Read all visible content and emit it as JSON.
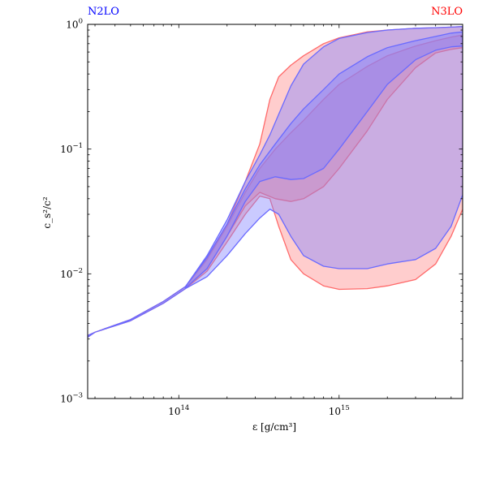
{
  "chart_data": {
    "type": "area",
    "title": "",
    "xlabel": "ε [g/cm³]",
    "ylabel": "c_s²/c²",
    "x_scale": "log",
    "y_scale": "log",
    "xlim": [
      27000000000000.0,
      5900000000000000.0
    ],
    "ylim": [
      0.001,
      1.0
    ],
    "grid": false,
    "x_ticks": [
      {
        "value": 100000000000000.0,
        "base": "10",
        "exp": "14"
      },
      {
        "value": 1000000000000000.0,
        "base": "10",
        "exp": "15"
      }
    ],
    "y_ticks": [
      {
        "value": 0.001,
        "base": "10",
        "exp": "−3"
      },
      {
        "value": 0.01,
        "base": "10",
        "exp": "−2"
      },
      {
        "value": 0.1,
        "base": "10",
        "exp": "−1"
      },
      {
        "value": 1.0,
        "base": "10",
        "exp": "0"
      }
    ],
    "corner_labels": {
      "left": {
        "text": "N2LO",
        "color": "#0000ff"
      },
      "right": {
        "text": "N3LO",
        "color": "#ff0000"
      }
    },
    "series": [
      {
        "name": "N3LO",
        "color": "#ff8888",
        "edge": "#ff6a6a",
        "outer_band": {
          "x": [
            27000000000000.0,
            30000000000000.0,
            50000000000000.0,
            80000000000000.0,
            110000000000000.0,
            150000000000000.0,
            200000000000000.0,
            260000000000000.0,
            320000000000000.0,
            370000000000000.0,
            420000000000000.0,
            500000000000000.0,
            600000000000000.0,
            800000000000000.0,
            1000000000000000.0,
            1500000000000000.0,
            2000000000000000.0,
            3000000000000000.0,
            4000000000000000.0,
            5000000000000000.0,
            5900000000000000.0
          ],
          "upper": [
            0.0032,
            0.0034,
            0.0043,
            0.006,
            0.0079,
            0.0135,
            0.025,
            0.055,
            0.11,
            0.25,
            0.38,
            0.47,
            0.56,
            0.7,
            0.78,
            0.87,
            0.9,
            0.93,
            0.94,
            0.95,
            0.96
          ],
          "lower": [
            0.0031,
            0.0034,
            0.0042,
            0.0058,
            0.0076,
            0.0105,
            0.018,
            0.03,
            0.042,
            0.04,
            0.024,
            0.013,
            0.01,
            0.008,
            0.0075,
            0.0076,
            0.008,
            0.009,
            0.012,
            0.02,
            0.033
          ]
        },
        "inner_band": {
          "x": [
            110000000000000.0,
            150000000000000.0,
            200000000000000.0,
            260000000000000.0,
            320000000000000.0,
            400000000000000.0,
            500000000000000.0,
            600000000000000.0,
            800000000000000.0,
            1000000000000000.0,
            1500000000000000.0,
            2000000000000000.0,
            3000000000000000.0,
            4000000000000000.0,
            5000000000000000.0,
            5900000000000000.0
          ],
          "upper": [
            0.0079,
            0.013,
            0.024,
            0.045,
            0.07,
            0.1,
            0.135,
            0.17,
            0.25,
            0.33,
            0.46,
            0.56,
            0.67,
            0.74,
            0.79,
            0.82
          ],
          "lower": [
            0.0077,
            0.011,
            0.02,
            0.035,
            0.045,
            0.04,
            0.038,
            0.04,
            0.05,
            0.07,
            0.14,
            0.25,
            0.45,
            0.59,
            0.63,
            0.65
          ]
        }
      },
      {
        "name": "N2LO",
        "color": "#8080ff",
        "edge": "#6a6aff",
        "outer_band": {
          "x": [
            27000000000000.0,
            30000000000000.0,
            50000000000000.0,
            80000000000000.0,
            110000000000000.0,
            150000000000000.0,
            200000000000000.0,
            260000000000000.0,
            320000000000000.0,
            370000000000000.0,
            420000000000000.0,
            500000000000000.0,
            600000000000000.0,
            800000000000000.0,
            1000000000000000.0,
            1500000000000000.0,
            2000000000000000.0,
            3000000000000000.0,
            4000000000000000.0,
            5000000000000000.0,
            5900000000000000.0
          ],
          "upper": [
            0.0032,
            0.0034,
            0.0043,
            0.006,
            0.0079,
            0.014,
            0.027,
            0.055,
            0.09,
            0.13,
            0.19,
            0.32,
            0.48,
            0.66,
            0.77,
            0.86,
            0.9,
            0.93,
            0.94,
            0.95,
            0.96
          ],
          "lower": [
            0.0031,
            0.0034,
            0.0042,
            0.0058,
            0.0076,
            0.0095,
            0.014,
            0.021,
            0.028,
            0.033,
            0.03,
            0.02,
            0.014,
            0.0115,
            0.011,
            0.011,
            0.012,
            0.013,
            0.016,
            0.024,
            0.043
          ]
        },
        "inner_band": {
          "x": [
            110000000000000.0,
            150000000000000.0,
            200000000000000.0,
            260000000000000.0,
            320000000000000.0,
            400000000000000.0,
            500000000000000.0,
            600000000000000.0,
            800000000000000.0,
            1000000000000000.0,
            1500000000000000.0,
            2000000000000000.0,
            3000000000000000.0,
            4000000000000000.0,
            5000000000000000.0,
            5900000000000000.0
          ],
          "upper": [
            0.0079,
            0.0135,
            0.025,
            0.048,
            0.075,
            0.11,
            0.16,
            0.21,
            0.3,
            0.4,
            0.55,
            0.65,
            0.74,
            0.8,
            0.85,
            0.87
          ],
          "lower": [
            0.0077,
            0.011,
            0.02,
            0.038,
            0.055,
            0.06,
            0.057,
            0.058,
            0.07,
            0.1,
            0.2,
            0.33,
            0.52,
            0.62,
            0.66,
            0.67
          ]
        }
      }
    ]
  }
}
